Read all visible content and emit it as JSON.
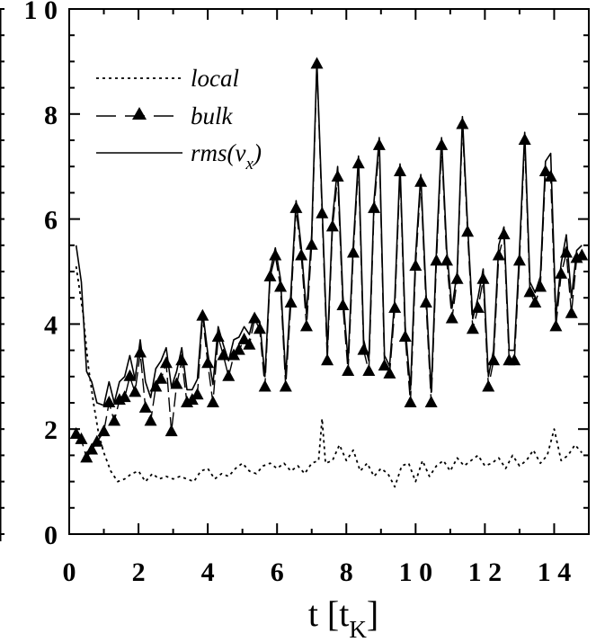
{
  "chart_data": {
    "type": "line",
    "title": "",
    "xlabel": "t [t",
    "xlabel_sub": "K",
    "xlabel_close": "]",
    "ylabel": "",
    "xlim": [
      0,
      15
    ],
    "ylim": [
      0,
      10
    ],
    "xticks": [
      0,
      2,
      4,
      6,
      8,
      10,
      12,
      14
    ],
    "xtick_labels": [
      "0",
      "2",
      "4",
      "6",
      "8",
      "1 0",
      "1 2",
      "1 4"
    ],
    "yticks": [
      0,
      2,
      4,
      6,
      8,
      10
    ],
    "ytick_labels": [
      "0",
      "2",
      "4",
      "6",
      "8",
      "1 0"
    ],
    "legend_position": "top-left",
    "grid": false,
    "series": [
      {
        "name": "local",
        "style": "dotted",
        "x": [
          0.2,
          0.4,
          0.55,
          0.7,
          0.85,
          1.0,
          1.2,
          1.4,
          1.6,
          1.8,
          2.0,
          2.2,
          2.4,
          2.6,
          2.8,
          3.0,
          3.2,
          3.4,
          3.6,
          3.8,
          4.0,
          4.2,
          4.4,
          4.6,
          4.8,
          5.0,
          5.2,
          5.4,
          5.6,
          5.8,
          6.0,
          6.2,
          6.4,
          6.6,
          6.8,
          7.0,
          7.2,
          7.3,
          7.4,
          7.6,
          7.8,
          8.0,
          8.2,
          8.4,
          8.6,
          8.8,
          9.0,
          9.2,
          9.4,
          9.6,
          9.8,
          10.0,
          10.2,
          10.4,
          10.6,
          10.8,
          11.0,
          11.2,
          11.4,
          11.6,
          11.8,
          12.0,
          12.2,
          12.4,
          12.6,
          12.8,
          13.0,
          13.2,
          13.4,
          13.6,
          13.8,
          14.0,
          14.2,
          14.4,
          14.6,
          14.8
        ],
        "values": [
          5.1,
          4.2,
          3.2,
          2.5,
          1.9,
          1.55,
          1.2,
          1.0,
          1.05,
          1.15,
          1.2,
          1.0,
          1.15,
          1.05,
          1.1,
          1.05,
          1.1,
          1.05,
          1.0,
          1.2,
          1.25,
          1.05,
          1.15,
          1.1,
          1.25,
          1.35,
          1.2,
          1.15,
          1.3,
          1.35,
          1.25,
          1.35,
          1.2,
          1.3,
          1.15,
          1.35,
          1.4,
          2.2,
          1.35,
          1.4,
          1.7,
          1.4,
          1.6,
          1.2,
          1.35,
          1.1,
          1.25,
          1.15,
          0.9,
          1.3,
          1.35,
          1.0,
          1.4,
          1.1,
          1.3,
          1.4,
          1.2,
          1.45,
          1.3,
          1.4,
          1.5,
          1.3,
          1.35,
          1.45,
          1.25,
          1.5,
          1.3,
          1.4,
          1.6,
          1.35,
          1.5,
          2.0,
          1.4,
          1.5,
          1.7,
          1.55
        ]
      },
      {
        "name": "bulk",
        "style": "dashed-triangles",
        "x": [
          0.2,
          0.35,
          0.5,
          0.65,
          0.8,
          1.0,
          1.15,
          1.3,
          1.45,
          1.6,
          1.75,
          1.9,
          2.05,
          2.2,
          2.35,
          2.5,
          2.65,
          2.8,
          2.95,
          3.1,
          3.25,
          3.4,
          3.55,
          3.7,
          3.85,
          4.0,
          4.15,
          4.3,
          4.45,
          4.6,
          4.75,
          4.9,
          5.05,
          5.2,
          5.35,
          5.5,
          5.65,
          5.8,
          5.95,
          6.1,
          6.25,
          6.4,
          6.55,
          6.7,
          6.85,
          7.0,
          7.15,
          7.3,
          7.45,
          7.6,
          7.75,
          7.9,
          8.05,
          8.2,
          8.35,
          8.5,
          8.65,
          8.8,
          8.95,
          9.1,
          9.25,
          9.4,
          9.55,
          9.7,
          9.85,
          10.0,
          10.15,
          10.3,
          10.45,
          10.6,
          10.75,
          10.9,
          11.05,
          11.2,
          11.35,
          11.5,
          11.65,
          11.8,
          11.95,
          12.1,
          12.25,
          12.4,
          12.55,
          12.7,
          12.85,
          13.0,
          13.15,
          13.3,
          13.45,
          13.6,
          13.75,
          13.9,
          14.05,
          14.2,
          14.35,
          14.5,
          14.65,
          14.8
        ],
        "values": [
          1.9,
          1.8,
          1.45,
          1.6,
          1.75,
          1.95,
          2.5,
          2.15,
          2.55,
          2.6,
          3.0,
          2.7,
          3.45,
          2.4,
          2.15,
          2.8,
          2.95,
          3.25,
          1.95,
          2.85,
          3.3,
          2.5,
          2.55,
          2.65,
          4.15,
          3.25,
          2.5,
          3.75,
          3.4,
          3.0,
          3.4,
          3.5,
          3.7,
          3.6,
          4.1,
          3.9,
          2.8,
          4.9,
          5.3,
          4.7,
          2.8,
          4.4,
          6.2,
          5.3,
          3.95,
          5.5,
          8.95,
          6.1,
          3.3,
          5.85,
          6.8,
          4.35,
          3.1,
          5.35,
          7.05,
          3.5,
          3.1,
          6.2,
          7.4,
          3.2,
          3.05,
          4.3,
          6.9,
          3.75,
          2.5,
          5.1,
          6.7,
          4.4,
          2.5,
          5.2,
          7.4,
          5.2,
          4.1,
          4.85,
          7.8,
          5.75,
          3.9,
          4.3,
          4.85,
          2.8,
          3.3,
          5.3,
          5.7,
          3.3,
          3.3,
          5.2,
          7.5,
          4.6,
          4.4,
          4.7,
          6.9,
          6.8,
          3.95,
          4.95,
          5.35,
          4.2,
          5.25,
          5.3
        ]
      },
      {
        "name": "rms(v",
        "name_sub": "x",
        "name_close": ")",
        "style": "solid",
        "x": [
          0.2,
          0.35,
          0.5,
          0.65,
          0.8,
          1.0,
          1.15,
          1.3,
          1.45,
          1.6,
          1.75,
          1.9,
          2.05,
          2.2,
          2.35,
          2.5,
          2.65,
          2.8,
          2.95,
          3.1,
          3.25,
          3.4,
          3.55,
          3.7,
          3.85,
          4.0,
          4.15,
          4.3,
          4.45,
          4.6,
          4.75,
          4.9,
          5.05,
          5.2,
          5.35,
          5.5,
          5.65,
          5.8,
          5.95,
          6.1,
          6.25,
          6.4,
          6.55,
          6.7,
          6.85,
          7.0,
          7.15,
          7.3,
          7.45,
          7.6,
          7.75,
          7.9,
          8.05,
          8.2,
          8.35,
          8.5,
          8.65,
          8.8,
          8.95,
          9.1,
          9.25,
          9.4,
          9.55,
          9.7,
          9.85,
          10.0,
          10.15,
          10.3,
          10.45,
          10.6,
          10.75,
          10.9,
          11.05,
          11.2,
          11.35,
          11.5,
          11.65,
          11.8,
          11.95,
          12.1,
          12.25,
          12.4,
          12.55,
          12.7,
          12.85,
          13.0,
          13.15,
          13.3,
          13.45,
          13.6,
          13.75,
          13.9,
          14.05,
          14.2,
          14.35,
          14.5,
          14.65,
          14.8
        ],
        "values": [
          5.5,
          4.8,
          3.1,
          2.9,
          2.5,
          2.45,
          2.9,
          2.5,
          2.9,
          3.0,
          3.4,
          2.95,
          3.7,
          2.9,
          2.6,
          3.15,
          3.3,
          3.55,
          2.8,
          3.1,
          3.55,
          2.75,
          2.75,
          2.95,
          4.25,
          3.45,
          2.85,
          3.95,
          3.6,
          3.3,
          3.7,
          3.75,
          3.95,
          3.8,
          4.2,
          4.05,
          3.0,
          5.0,
          5.45,
          4.85,
          3.0,
          4.6,
          6.35,
          5.45,
          4.2,
          5.7,
          9.0,
          6.25,
          3.5,
          6.0,
          7.0,
          4.55,
          3.3,
          5.5,
          7.2,
          3.7,
          3.3,
          6.35,
          7.55,
          3.4,
          3.2,
          4.5,
          7.05,
          3.95,
          2.75,
          5.3,
          6.85,
          4.6,
          2.7,
          5.4,
          7.55,
          5.4,
          4.3,
          5.0,
          7.95,
          5.9,
          4.1,
          4.5,
          5.05,
          3.0,
          3.5,
          5.5,
          5.85,
          3.5,
          3.5,
          5.4,
          7.65,
          4.8,
          4.6,
          4.9,
          7.1,
          7.25,
          4.15,
          5.15,
          5.7,
          4.5,
          5.4,
          5.5
        ]
      }
    ]
  }
}
